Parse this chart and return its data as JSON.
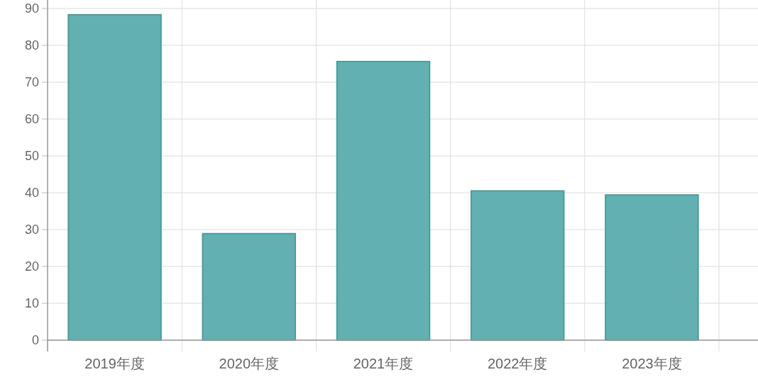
{
  "chart_data": {
    "type": "bar",
    "categories": [
      "2019年度",
      "2020年度",
      "2021年度",
      "2022年度",
      "2023年度"
    ],
    "values": [
      88.3,
      28.9,
      75.6,
      40.5,
      39.4
    ],
    "color": "#62b0b1",
    "ylim": [
      0,
      90
    ],
    "yticks": [
      0,
      10,
      20,
      30,
      40,
      50,
      60,
      70,
      80,
      90
    ],
    "grid": true
  }
}
